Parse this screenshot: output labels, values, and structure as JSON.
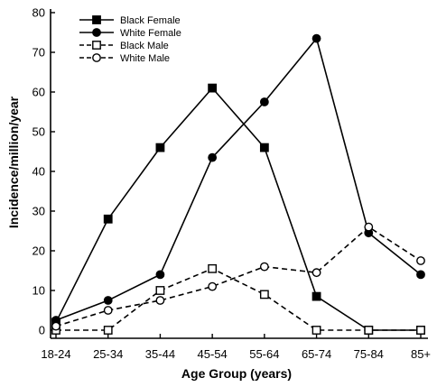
{
  "chart_data": {
    "type": "line",
    "title": "",
    "xlabel": "Age Group (years)",
    "ylabel": "Incidence/million/year",
    "categories": [
      "18-24",
      "25-34",
      "35-44",
      "45-54",
      "55-64",
      "65-74",
      "75-84",
      "85+"
    ],
    "ylim": [
      0,
      80
    ],
    "yticks": [
      0,
      10,
      20,
      30,
      40,
      50,
      60,
      70,
      80
    ],
    "grid": false,
    "legend_position": "top-left",
    "series": [
      {
        "name": "Black Female",
        "values": [
          2,
          28,
          46,
          61,
          46,
          8.5,
          0,
          0
        ],
        "line": "solid",
        "marker": "square-filled",
        "color": "#000000"
      },
      {
        "name": "White Female",
        "values": [
          2.5,
          7.5,
          14,
          43.5,
          57.5,
          73.5,
          24.5,
          14
        ],
        "line": "solid",
        "marker": "circle-filled",
        "color": "#000000"
      },
      {
        "name": "Black Male",
        "values": [
          0,
          0,
          10,
          15.5,
          9,
          0,
          0,
          0
        ],
        "line": "dashed",
        "marker": "square-open",
        "color": "#000000"
      },
      {
        "name": "White Male",
        "values": [
          1,
          5,
          7.5,
          11,
          16,
          14.5,
          26,
          17.5
        ],
        "line": "dashed",
        "marker": "circle-open",
        "color": "#000000"
      }
    ]
  }
}
